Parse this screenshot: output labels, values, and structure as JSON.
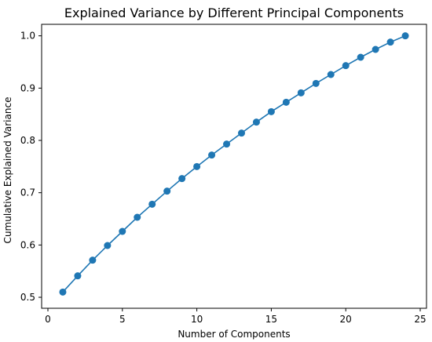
{
  "chart_data": {
    "type": "line",
    "title": "Explained Variance by Different Principal Components",
    "xlabel": "Number of Components",
    "ylabel": "Cumulative Explained Variance",
    "xlim": [
      0,
      25
    ],
    "ylim": [
      0.5,
      1.0
    ],
    "xticks": [
      0,
      5,
      10,
      15,
      20,
      25
    ],
    "yticks": [
      0.5,
      0.6,
      0.7,
      0.8,
      0.9,
      1.0
    ],
    "xtick_labels": [
      "0",
      "5",
      "10",
      "15",
      "20",
      "25"
    ],
    "ytick_labels": [
      "0.5",
      "0.6",
      "0.7",
      "0.8",
      "0.9",
      "1.0"
    ],
    "grid": false,
    "color": "#1f77b4",
    "series": [
      {
        "x": [
          1,
          2,
          3,
          4,
          5,
          6,
          7,
          8,
          9,
          10,
          11,
          12,
          13,
          14,
          15,
          16,
          17,
          18,
          19,
          20,
          21,
          22,
          23,
          24
        ],
        "values": [
          0.51,
          0.541,
          0.571,
          0.599,
          0.626,
          0.653,
          0.678,
          0.703,
          0.727,
          0.75,
          0.772,
          0.793,
          0.814,
          0.835,
          0.855,
          0.873,
          0.891,
          0.909,
          0.926,
          0.943,
          0.959,
          0.974,
          0.988,
          1.0
        ]
      }
    ]
  }
}
